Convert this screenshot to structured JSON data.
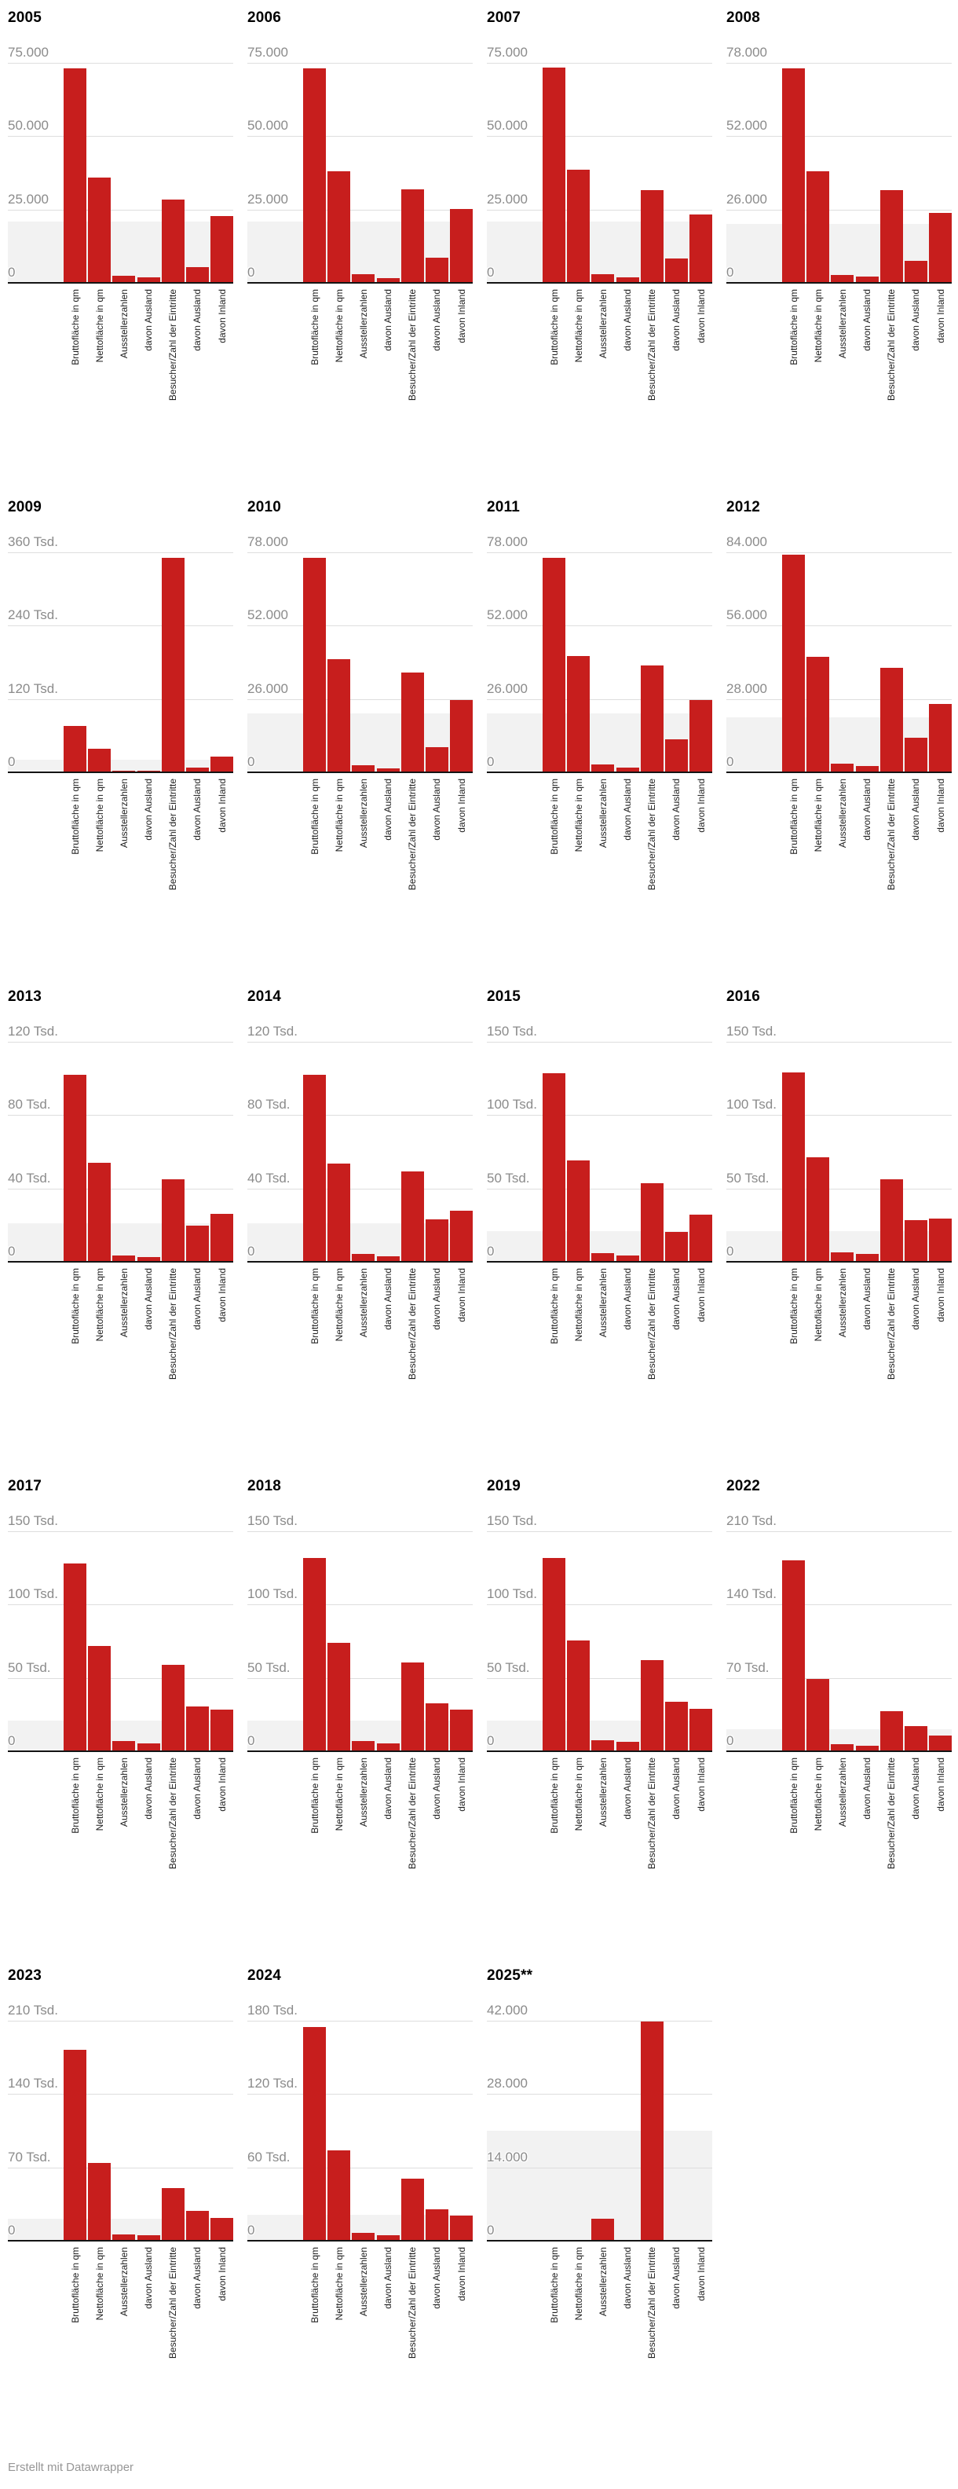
{
  "footer": {
    "credit": "Erstellt mit Datawrapper"
  },
  "colors": {
    "bar": "#c71e1d",
    "band": "#f2f2f2",
    "gridline": "#dedede",
    "baseline": "#141414",
    "y_label": "#8b8b8b",
    "x_label": "#1e1e1e",
    "title": "#000000",
    "credit": "#979797"
  },
  "chart_data": {
    "type": "bar",
    "grid": true,
    "legend": null,
    "bar_color": "#c71e1d",
    "categories": [
      "Bruttofläche in qm",
      "Nettofläche in qm",
      "Ausstellerzahlen",
      "davon Ausland",
      "Besucher/Zahl der Eintritte",
      "davon Ausland",
      "davon Inland"
    ],
    "highlight_band_y": [
      0,
      21000
    ],
    "panels": [
      {
        "title": "2005",
        "ylim": [
          0,
          75000
        ],
        "ytick_values": [
          75000,
          50000,
          25000,
          0
        ],
        "ytick_labels": [
          "75.000",
          "50.000",
          "25.000",
          "0"
        ],
        "values": [
          73000,
          36000,
          2400,
          1800,
          28300,
          5300,
          22700
        ]
      },
      {
        "title": "2006",
        "ylim": [
          0,
          75000
        ],
        "ytick_values": [
          75000,
          50000,
          25000,
          0
        ],
        "ytick_labels": [
          "75.000",
          "50.000",
          "25.000",
          "0"
        ],
        "values": [
          73000,
          38000,
          2900,
          1700,
          32000,
          8700,
          25200
        ]
      },
      {
        "title": "2007",
        "ylim": [
          0,
          75000
        ],
        "ytick_values": [
          75000,
          50000,
          25000,
          0
        ],
        "ytick_labels": [
          "75.000",
          "50.000",
          "25.000",
          "0"
        ],
        "values": [
          73500,
          38500,
          3000,
          2000,
          31500,
          8200,
          23200
        ]
      },
      {
        "title": "2008",
        "ylim": [
          0,
          78000
        ],
        "ytick_values": [
          78000,
          52000,
          26000,
          0
        ],
        "ytick_labels": [
          "78.000",
          "52.000",
          "26.000",
          "0"
        ],
        "values": [
          76000,
          39500,
          2900,
          2200,
          33000,
          7900,
          24800
        ]
      },
      {
        "title": "2009",
        "ylim": [
          0,
          360000
        ],
        "ytick_values": [
          360000,
          240000,
          120000,
          0
        ],
        "ytick_labels": [
          "360 Tsd.",
          "240 Tsd.",
          "120 Tsd.",
          "0"
        ],
        "values": [
          76000,
          38500,
          2600,
          2000,
          351000,
          8000,
          25500
        ]
      },
      {
        "title": "2010",
        "ylim": [
          0,
          78000
        ],
        "ytick_values": [
          78000,
          52000,
          26000,
          0
        ],
        "ytick_labels": [
          "78.000",
          "52.000",
          "26.000",
          "0"
        ],
        "values": [
          76000,
          40000,
          2500,
          1500,
          35500,
          9000,
          25500
        ]
      },
      {
        "title": "2011",
        "ylim": [
          0,
          78000
        ],
        "ytick_values": [
          78000,
          52000,
          26000,
          0
        ],
        "ytick_labels": [
          "78.000",
          "52.000",
          "26.000",
          "0"
        ],
        "values": [
          76000,
          41300,
          2800,
          1800,
          38000,
          11600,
          25700
        ]
      },
      {
        "title": "2012",
        "ylim": [
          0,
          84000
        ],
        "ytick_values": [
          84000,
          56000,
          28000,
          0
        ],
        "ytick_labels": [
          "84.000",
          "56.000",
          "28.000",
          "0"
        ],
        "values": [
          83000,
          44000,
          3400,
          2300,
          40000,
          13200,
          26000
        ]
      },
      {
        "title": "2013",
        "ylim": [
          0,
          120000
        ],
        "ytick_values": [
          120000,
          80000,
          40000,
          0
        ],
        "ytick_labels": [
          "120 Tsd.",
          "80 Tsd.",
          "40 Tsd.",
          "0"
        ],
        "values": [
          102000,
          54000,
          3500,
          2500,
          45000,
          19800,
          26000
        ]
      },
      {
        "title": "2014",
        "ylim": [
          0,
          120000
        ],
        "ytick_values": [
          120000,
          80000,
          40000,
          0
        ],
        "ytick_labels": [
          "120 Tsd.",
          "80 Tsd.",
          "40 Tsd.",
          "0"
        ],
        "values": [
          102000,
          53500,
          4500,
          3000,
          49500,
          23000,
          27800
        ]
      },
      {
        "title": "2015",
        "ylim": [
          0,
          150000
        ],
        "ytick_values": [
          150000,
          100000,
          50000,
          0
        ],
        "ytick_labels": [
          "150 Tsd.",
          "100 Tsd.",
          "50 Tsd.",
          "0"
        ],
        "values": [
          128500,
          69000,
          6000,
          4500,
          53500,
          20400,
          31900
        ]
      },
      {
        "title": "2016",
        "ylim": [
          0,
          150000
        ],
        "ytick_values": [
          150000,
          100000,
          50000,
          0
        ],
        "ytick_labels": [
          "150 Tsd.",
          "100 Tsd.",
          "50 Tsd.",
          "0"
        ],
        "values": [
          129000,
          71000,
          6500,
          5500,
          56000,
          28300,
          29500
        ]
      },
      {
        "title": "2017",
        "ylim": [
          0,
          150000
        ],
        "ytick_values": [
          150000,
          100000,
          50000,
          0
        ],
        "ytick_labels": [
          "150 Tsd.",
          "100 Tsd.",
          "50 Tsd.",
          "0"
        ],
        "values": [
          128000,
          72000,
          6800,
          5200,
          58700,
          30300,
          28500
        ]
      },
      {
        "title": "2018",
        "ylim": [
          0,
          150000
        ],
        "ytick_values": [
          150000,
          100000,
          50000,
          0
        ],
        "ytick_labels": [
          "150 Tsd.",
          "100 Tsd.",
          "50 Tsd.",
          "0"
        ],
        "values": [
          132000,
          74000,
          6800,
          5200,
          60500,
          32500,
          28200
        ]
      },
      {
        "title": "2019",
        "ylim": [
          0,
          150000
        ],
        "ytick_values": [
          150000,
          100000,
          50000,
          0
        ],
        "ytick_labels": [
          "150 Tsd.",
          "100 Tsd.",
          "50 Tsd.",
          "0"
        ],
        "values": [
          132000,
          75500,
          7300,
          6200,
          62000,
          34000,
          28700
        ]
      },
      {
        "title": "2022",
        "ylim": [
          0,
          210000
        ],
        "ytick_values": [
          210000,
          140000,
          70000,
          0
        ],
        "ytick_labels": [
          "210 Tsd.",
          "140 Tsd.",
          "70 Tsd.",
          "0"
        ],
        "values": [
          182000,
          69000,
          6500,
          5500,
          38200,
          23800,
          14900
        ]
      },
      {
        "title": "2023",
        "ylim": [
          0,
          210000
        ],
        "ytick_values": [
          210000,
          140000,
          70000,
          0
        ],
        "ytick_labels": [
          "210 Tsd.",
          "140 Tsd.",
          "70 Tsd.",
          "0"
        ],
        "values": [
          182000,
          74000,
          6000,
          5000,
          50000,
          28500,
          22000
        ]
      },
      {
        "title": "2024",
        "ylim": [
          0,
          180000
        ],
        "ytick_values": [
          180000,
          120000,
          60000,
          0
        ],
        "ytick_labels": [
          "180 Tsd.",
          "120 Tsd.",
          "60 Tsd.",
          "0"
        ],
        "values": [
          175000,
          74000,
          6300,
          4800,
          51000,
          25500,
          20500
        ]
      },
      {
        "title": "2025**",
        "ylim": [
          0,
          42000
        ],
        "ytick_values": [
          42000,
          28000,
          14000,
          0
        ],
        "ytick_labels": [
          "42.000",
          "28.000",
          "14.000",
          "0"
        ],
        "values": [
          0,
          0,
          4200,
          0,
          41800,
          0,
          0
        ]
      }
    ]
  }
}
